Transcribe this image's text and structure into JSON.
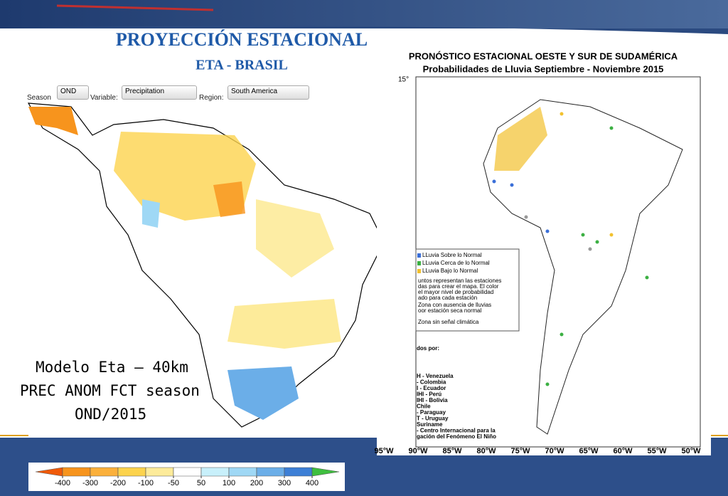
{
  "header": {
    "title": "PROYECCIÓN ESTACIONAL",
    "subtitle": "ETA - BRASIL"
  },
  "left_map": {
    "controls": {
      "season_label": "Season",
      "season": "OND",
      "variable_label": "Variable:",
      "variable": "Precipitation",
      "region_label": "Region:",
      "region": "South America"
    },
    "caption": [
      "Modelo Eta – 40km",
      "PREC ANOM FCT season",
      "OND/2015"
    ],
    "colorbar": {
      "ticks": [
        -400,
        -300,
        -200,
        -100,
        -50,
        50,
        100,
        200,
        300,
        400
      ],
      "colors": [
        "#f05a0a",
        "#f7941d",
        "#fbb03b",
        "#fcd34d",
        "#fdeb9a",
        "#ffffff",
        "#c8f0fb",
        "#9fd8f5",
        "#6baee8",
        "#3d7fd6",
        "#3fbf3f"
      ]
    }
  },
  "right_map": {
    "title": "PRONÓSTICO ESTACIONAL OESTE Y SUR DE SUDAMÉRICA",
    "subtitle": "Probabilidades de Lluvia Septiembre - Noviembre 2015",
    "lat_label": "15°",
    "lon_labels": [
      "95°W",
      "90°W",
      "85°W",
      "80°W",
      "75°W",
      "70°W",
      "65°W",
      "60°W",
      "55°W",
      "50°W"
    ],
    "legend": [
      {
        "label": "LLuvia Sobre lo Normal",
        "color": "#3a6fd8"
      },
      {
        "label": "LLuvia Cerca de lo Normal",
        "color": "#3cb043"
      },
      {
        "label": "LLuvia Bajo lo Normal",
        "color": "#f2c12e"
      }
    ],
    "notes": [
      "untos representan las estaciones",
      "das para crear el mapa. El color",
      "el mayor nivel de probabilidad",
      "ado para cada estación",
      "Zona con ausencia de lluvias",
      "oor estación seca normal",
      "Zona sin señal climática"
    ],
    "sources_title": "dos por:",
    "sources": [
      "H - Venezuela",
      "- Colombia",
      "I - Ecuador",
      "IHI - Perú",
      "IHI - Bolivia",
      "Chile",
      "- Paraguay",
      "T - Uruguay",
      "Suriname",
      "- Centro Internacional para la",
      "gación del Fenómeno El Niño"
    ]
  }
}
